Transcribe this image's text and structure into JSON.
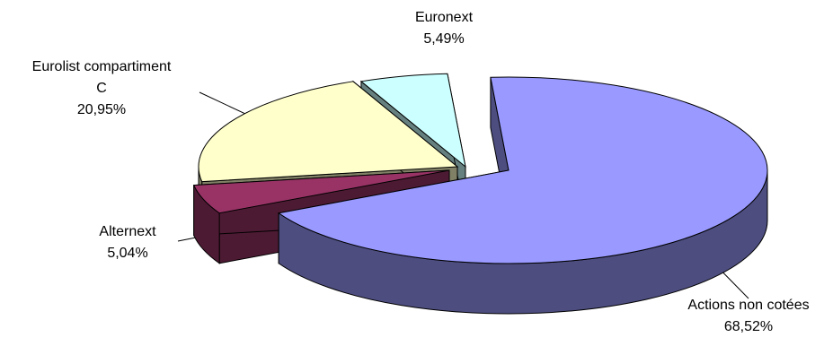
{
  "chart_data": {
    "type": "pie",
    "title": "",
    "slices": [
      {
        "key": "actions",
        "name": "Actions non cotées",
        "value": 68.52,
        "value_label": "68,52%",
        "color": "#9999ff"
      },
      {
        "key": "alternext",
        "name": "Alternext",
        "value": 5.04,
        "value_label": "5,04%",
        "color": "#993366"
      },
      {
        "key": "eurolist",
        "name": "Eurolist compartiment C",
        "name_lines": [
          "Eurolist compartiment",
          "C"
        ],
        "value": 20.95,
        "value_label": "20,95%",
        "color": "#ffffcc"
      },
      {
        "key": "euronext",
        "name": "Euronext",
        "value": 5.49,
        "value_label": "5,49%",
        "color": "#ccffff"
      }
    ],
    "style": "3d-exploded",
    "legend": "none"
  }
}
